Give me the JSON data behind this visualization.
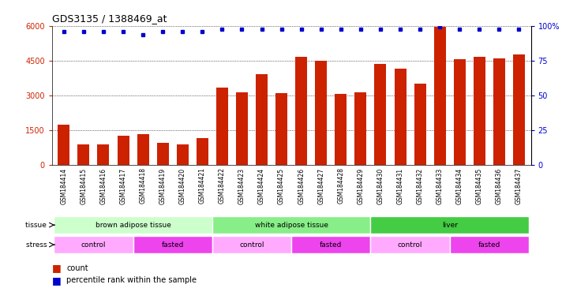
{
  "title": "GDS3135 / 1388469_at",
  "samples": [
    "GSM184414",
    "GSM184415",
    "GSM184416",
    "GSM184417",
    "GSM184418",
    "GSM184419",
    "GSM184420",
    "GSM184421",
    "GSM184422",
    "GSM184423",
    "GSM184424",
    "GSM184425",
    "GSM184426",
    "GSM184427",
    "GSM184428",
    "GSM184429",
    "GSM184430",
    "GSM184431",
    "GSM184432",
    "GSM184433",
    "GSM184434",
    "GSM184435",
    "GSM184436",
    "GSM184437"
  ],
  "counts": [
    1750,
    900,
    900,
    1250,
    1350,
    950,
    900,
    1150,
    3350,
    3150,
    3900,
    3100,
    4650,
    4500,
    3050,
    3150,
    4350,
    4150,
    3500,
    5950,
    4550,
    4650,
    4600,
    4750
  ],
  "percentile_y": [
    5750,
    5750,
    5750,
    5750,
    5600,
    5750,
    5750,
    5750,
    5850,
    5850,
    5850,
    5850,
    5850,
    5850,
    5850,
    5850,
    5850,
    5850,
    5850,
    5970,
    5850,
    5850,
    5850,
    5850
  ],
  "bar_color": "#cc2200",
  "dot_color": "#0000cc",
  "ylim_left": [
    0,
    6000
  ],
  "yticks_left": [
    0,
    1500,
    3000,
    4500,
    6000
  ],
  "ylim_right": [
    0,
    100
  ],
  "yticks_right": [
    0,
    25,
    50,
    75,
    100
  ],
  "tissue_groups": [
    {
      "label": "brown adipose tissue",
      "start": 0,
      "end": 7,
      "color": "#ccffcc"
    },
    {
      "label": "white adipose tissue",
      "start": 8,
      "end": 15,
      "color": "#88ee88"
    },
    {
      "label": "liver",
      "start": 16,
      "end": 23,
      "color": "#44cc44"
    }
  ],
  "stress_groups": [
    {
      "label": "control",
      "start": 0,
      "end": 3,
      "color": "#ffaaff"
    },
    {
      "label": "fasted",
      "start": 4,
      "end": 7,
      "color": "#ee44ee"
    },
    {
      "label": "control",
      "start": 8,
      "end": 11,
      "color": "#ffaaff"
    },
    {
      "label": "fasted",
      "start": 12,
      "end": 15,
      "color": "#ee44ee"
    },
    {
      "label": "control",
      "start": 16,
      "end": 19,
      "color": "#ffaaff"
    },
    {
      "label": "fasted",
      "start": 20,
      "end": 23,
      "color": "#ee44ee"
    }
  ],
  "legend_count_label": "count",
  "legend_pct_label": "percentile rank within the sample",
  "axis_color_left": "#cc2200",
  "axis_color_right": "#0000cc",
  "bg_color": "#ffffff",
  "plot_bg_color": "#ffffff",
  "label_bg_color": "#cccccc",
  "title_fontsize": 9,
  "tick_fontsize": 7,
  "label_fontsize": 6.5,
  "legend_fontsize": 7
}
